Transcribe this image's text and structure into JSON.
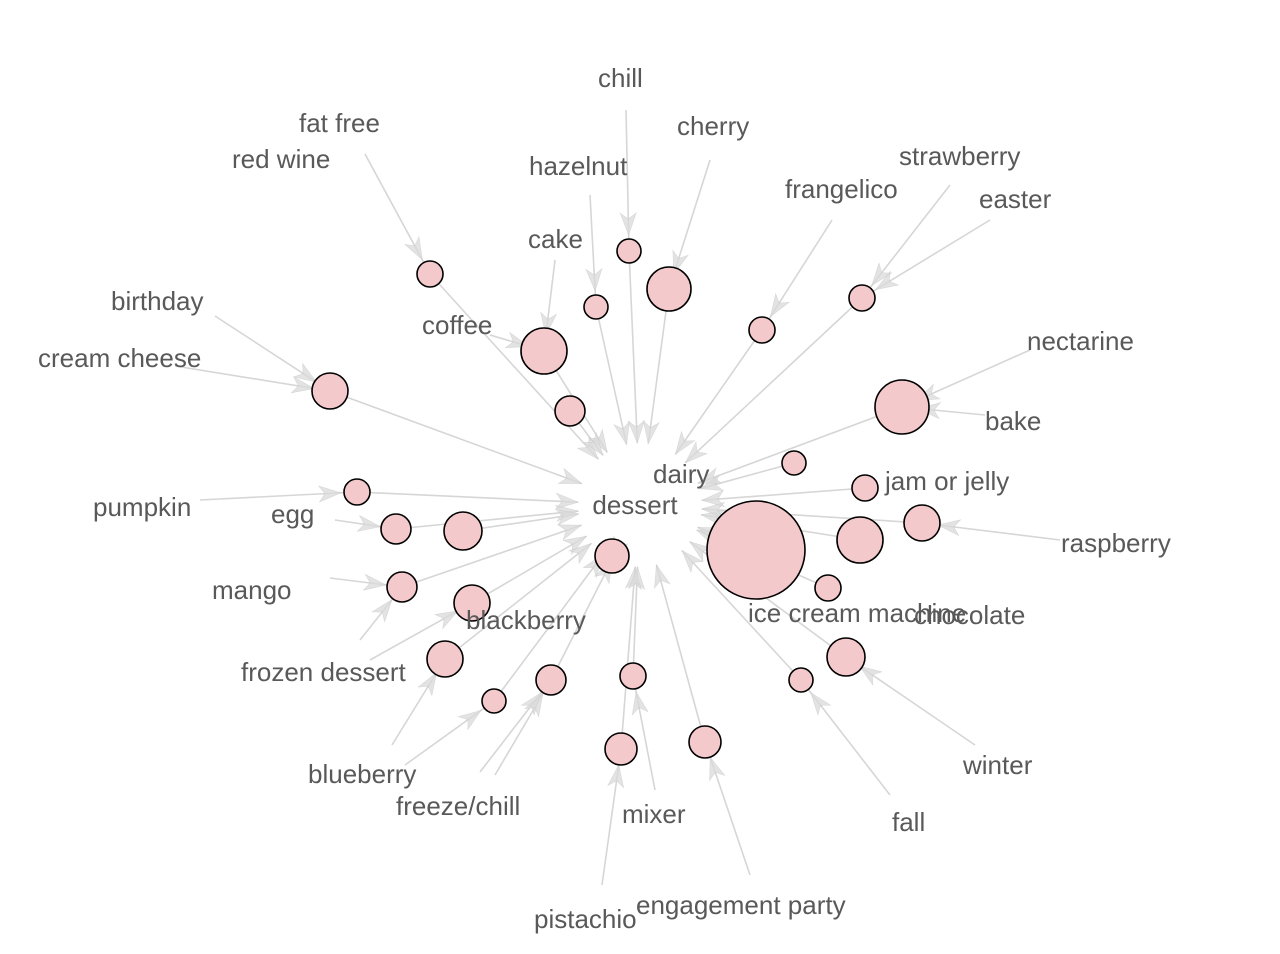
{
  "diagram": {
    "center_label": "dessert",
    "nodes": [
      {
        "id": "n-icecream",
        "label": "ice cream machine"
      },
      {
        "id": "n-nectarine",
        "label": "nectarine"
      },
      {
        "id": "n-coffee",
        "label": "coffee"
      },
      {
        "id": "n-cherry",
        "label": "cherry"
      },
      {
        "id": "n-chocolate",
        "label": "chocolate"
      },
      {
        "id": "n-egg",
        "label": "egg"
      },
      {
        "id": "n-blackberry",
        "label": "blackberry"
      },
      {
        "id": "n-winter",
        "label": "winter"
      },
      {
        "id": "n-frozen",
        "label": "frozen dessert"
      },
      {
        "id": "n-raspberry",
        "label": "raspberry"
      },
      {
        "id": "n-engagement",
        "label": "engagement party"
      },
      {
        "id": "n-pistachio",
        "label": "pistachio"
      },
      {
        "id": "n-dessertnode",
        "label": ""
      },
      {
        "id": "n-freeze",
        "label": "freeze/chill"
      },
      {
        "id": "n-birthday",
        "label": "birthday"
      },
      {
        "id": "n-mango",
        "label": "mango"
      },
      {
        "id": "n-pumpkin",
        "label": "pumpkin"
      },
      {
        "id": "n-mixer",
        "label": "mixer"
      },
      {
        "id": "n-cake",
        "label": "cake"
      },
      {
        "id": "n-jam",
        "label": "jam or jelly"
      },
      {
        "id": "n-bake",
        "label": "bake"
      },
      {
        "id": "n-dairy",
        "label": "dairy"
      },
      {
        "id": "n-hazelnut",
        "label": "hazelnut"
      },
      {
        "id": "n-redwine",
        "label": "red wine"
      },
      {
        "id": "n-frangelico",
        "label": "frangelico"
      },
      {
        "id": "n-easter",
        "label": "easter"
      },
      {
        "id": "n-fall",
        "label": "fall"
      },
      {
        "id": "n-blueberry",
        "label": "blueberry"
      },
      {
        "id": "n-strawberry",
        "label": "strawberry"
      },
      {
        "id": "n-creamcheese",
        "label": "cream cheese"
      },
      {
        "id": "n-chill",
        "label": "chill"
      },
      {
        "id": "n-fatfree",
        "label": "fat free"
      }
    ]
  }
}
